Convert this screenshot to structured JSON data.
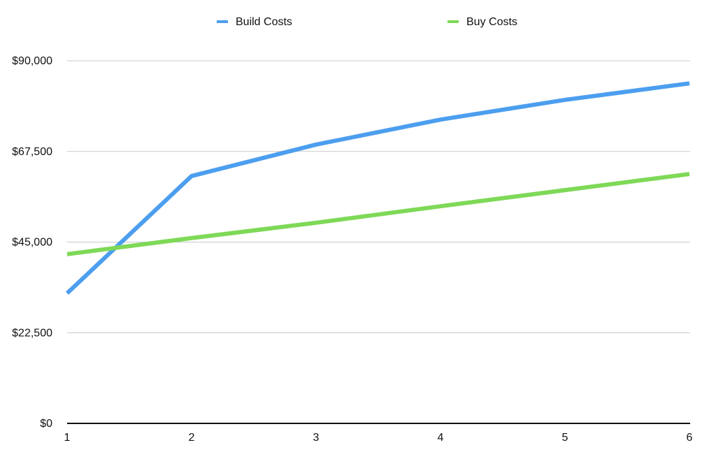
{
  "chart_data": {
    "type": "line",
    "x": [
      1,
      2,
      3,
      4,
      5,
      6
    ],
    "xlim": [
      1,
      6
    ],
    "xticks": [
      1,
      2,
      3,
      4,
      5,
      6
    ],
    "ylim": [
      0,
      90000
    ],
    "yticks": [
      {
        "value": 0,
        "label": "$0"
      },
      {
        "value": 22500,
        "label": "$22,500"
      },
      {
        "value": 45000,
        "label": "$45,000"
      },
      {
        "value": 67500,
        "label": "$67,500"
      },
      {
        "value": 90000,
        "label": "$90,000"
      }
    ],
    "grid": true,
    "legend": "top",
    "series": [
      {
        "name": "Build Costs",
        "color": "#4c9eef",
        "values": [
          32300,
          61400,
          69200,
          75400,
          80300,
          84400
        ]
      },
      {
        "name": "Buy Costs",
        "color": "#7ed957",
        "values": [
          42000,
          46000,
          49800,
          53900,
          57900,
          61900
        ]
      }
    ]
  }
}
